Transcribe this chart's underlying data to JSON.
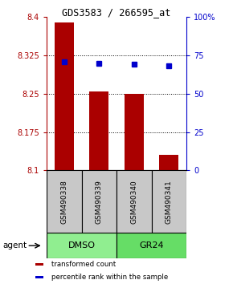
{
  "title": "GDS3583 / 266595_at",
  "samples": [
    "GSM490338",
    "GSM490339",
    "GSM490340",
    "GSM490341"
  ],
  "bar_values": [
    8.39,
    8.255,
    8.25,
    8.13
  ],
  "percentile_pct": [
    71,
    70,
    69,
    68
  ],
  "bar_base": 8.1,
  "ylim_left": [
    8.1,
    8.4
  ],
  "ylim_right": [
    0,
    100
  ],
  "yticks_left": [
    8.1,
    8.175,
    8.25,
    8.325,
    8.4
  ],
  "yticks_right": [
    0,
    25,
    50,
    75,
    100
  ],
  "ytick_labels_left": [
    "8.1",
    "8.175",
    "8.25",
    "8.325",
    "8.4"
  ],
  "ytick_labels_right": [
    "0",
    "25",
    "50",
    "75",
    "100%"
  ],
  "groups": [
    {
      "label": "DMSO",
      "indices": [
        0,
        1
      ],
      "color": "#90EE90"
    },
    {
      "label": "GR24",
      "indices": [
        2,
        3
      ],
      "color": "#66DD66"
    }
  ],
  "bar_color": "#AA0000",
  "dot_color": "#0000CC",
  "sample_box_color": "#C8C8C8",
  "group_label": "agent",
  "legend_items": [
    {
      "color": "#AA0000",
      "label": "transformed count"
    },
    {
      "color": "#0000CC",
      "label": "percentile rank within the sample"
    }
  ]
}
